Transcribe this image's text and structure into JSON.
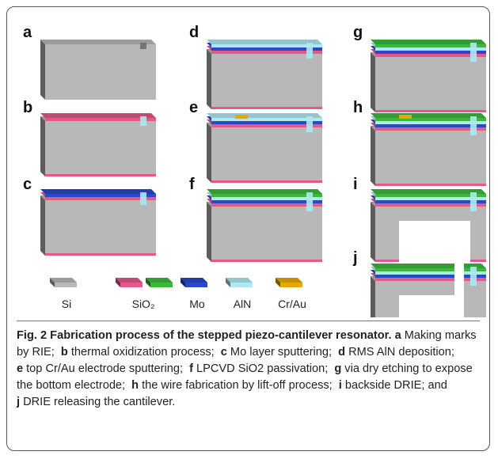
{
  "panels": [
    {
      "label": "a"
    },
    {
      "label": "b"
    },
    {
      "label": "c"
    },
    {
      "label": "d"
    },
    {
      "label": "e"
    },
    {
      "label": "f"
    },
    {
      "label": "g"
    },
    {
      "label": "h"
    },
    {
      "label": "i"
    },
    {
      "label": "j"
    }
  ],
  "legend": [
    {
      "label": "Si"
    },
    {
      "label": "SiO₂"
    },
    {
      "label": "Mo"
    },
    {
      "label": "AlN"
    },
    {
      "label": "Cr/Au"
    }
  ],
  "caption": {
    "title": "Fig. 2 Fabrication process of the stepped piezo-cantilever resonator.",
    "items": [
      {
        "letter": "a",
        "text": "Making marks by RIE;"
      },
      {
        "letter": "b",
        "text": "thermal oxidization process;"
      },
      {
        "letter": "c",
        "text": "Mo layer sputtering;"
      },
      {
        "letter": "d",
        "text": "RMS AlN deposition;"
      },
      {
        "letter": "e",
        "text": "top Cr/Au electrode sputtering;"
      },
      {
        "letter": "f",
        "text": "LPCVD SiO2 passivation;"
      },
      {
        "letter": "g",
        "text": "via dry etching to expose the bottom electrode;"
      },
      {
        "letter": "h",
        "text": "the wire fabrication by lift-off process;"
      },
      {
        "letter": "i",
        "text": "backside DRIE; and"
      },
      {
        "letter": "j",
        "text": "DRIE releasing the cantilever."
      }
    ]
  }
}
